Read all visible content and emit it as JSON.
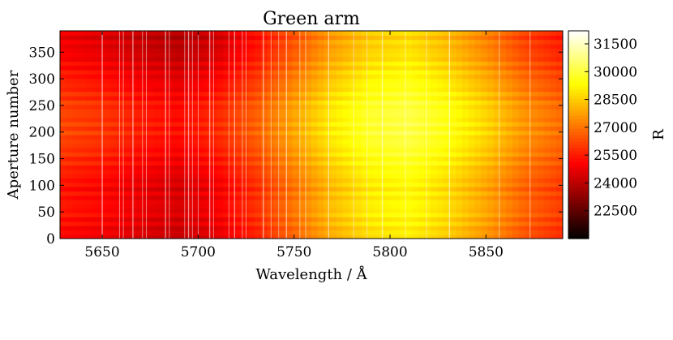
{
  "chart_data": {
    "type": "heatmap",
    "title": "Green arm",
    "xlabel": "Wavelength / Å",
    "ylabel": "Aperture number",
    "xlim": [
      5628,
      5890
    ],
    "ylim": [
      0,
      390
    ],
    "x_ticks": [
      5650,
      5700,
      5750,
      5800,
      5850
    ],
    "y_ticks": [
      0,
      50,
      100,
      150,
      200,
      250,
      300,
      350
    ],
    "colorbar": {
      "label": "R",
      "colormap": "hot",
      "range": [
        21000,
        32200
      ],
      "ticks": [
        22500,
        24000,
        25500,
        27000,
        28500,
        30000,
        31500
      ]
    },
    "resolution_profile": {
      "wavelength": [
        5628,
        5650,
        5670,
        5690,
        5710,
        5730,
        5750,
        5770,
        5790,
        5810,
        5830,
        5850,
        5870,
        5890
      ],
      "R": [
        25300,
        25000,
        24600,
        24300,
        24800,
        25700,
        26900,
        28100,
        28900,
        29200,
        28600,
        27700,
        26600,
        25900
      ]
    },
    "aperture_profile": {
      "aperture": [
        0,
        50,
        100,
        150,
        200,
        250,
        300,
        350,
        390
      ],
      "delta_R": [
        -200,
        200,
        100,
        600,
        1000,
        900,
        300,
        -300,
        -500
      ]
    },
    "bright_columns_wavelength": [
      5650,
      5659,
      5661,
      5666,
      5671,
      5673,
      5683,
      5685,
      5693,
      5695,
      5697,
      5700,
      5706,
      5708,
      5716,
      5719,
      5723,
      5725,
      5734,
      5738,
      5742,
      5746,
      5753,
      5756,
      5768,
      5781,
      5788,
      5796,
      5808,
      5819,
      5831,
      5857,
      5873
    ]
  }
}
